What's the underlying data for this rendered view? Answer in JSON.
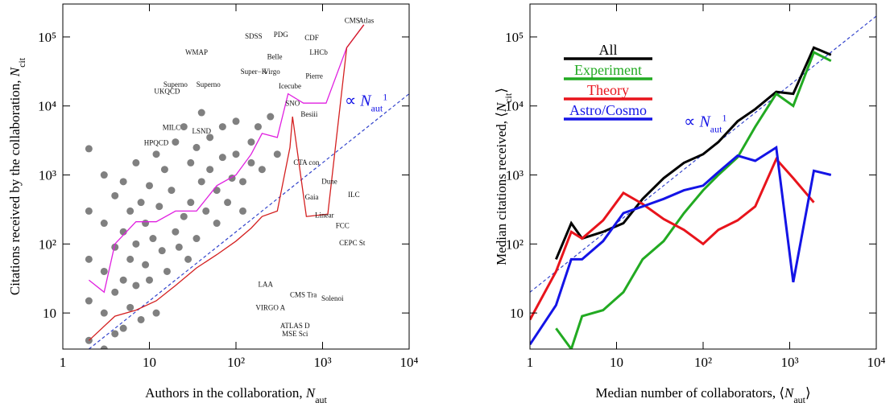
{
  "chart_data": [
    {
      "type": "scatter",
      "x_label": [
        {
          "t": "Authors in the collaboration, "
        },
        {
          "t": "N",
          "style": "italic"
        },
        {
          "t": "aut",
          "style": "sub"
        }
      ],
      "y_label": [
        {
          "t": "Citations received by the collaboration, "
        },
        {
          "t": "N",
          "style": "italic"
        },
        {
          "t": "cit",
          "style": "sub"
        }
      ],
      "xlim": [
        1,
        10000
      ],
      "ylim": [
        3,
        300000
      ],
      "log_x": true,
      "log_y": true,
      "xticks": [
        1,
        10,
        {
          "value": 100,
          "label": "10²"
        },
        {
          "value": 1000,
          "label": "10³"
        },
        {
          "value": 10000,
          "label": "10⁴"
        }
      ],
      "yticks": [
        10,
        {
          "value": 100,
          "label": "10²"
        },
        {
          "value": 1000,
          "label": "10³"
        },
        {
          "value": 10000,
          "label": "10⁴"
        },
        {
          "value": 100000,
          "label": "10⁵"
        }
      ],
      "color": "#808080",
      "x": [
        2,
        2,
        2,
        2,
        2,
        3,
        3,
        3,
        3,
        3,
        4,
        4,
        4,
        4,
        5,
        5,
        5,
        5,
        6,
        6,
        6,
        7,
        7,
        7,
        8,
        8,
        9,
        9,
        10,
        10,
        11,
        12,
        12,
        13,
        14,
        15,
        16,
        18,
        20,
        20,
        22,
        25,
        25,
        28,
        30,
        30,
        35,
        35,
        40,
        40,
        45,
        50,
        50,
        60,
        60,
        70,
        70,
        80,
        90,
        100,
        100,
        120,
        120,
        150,
        150,
        180,
        200,
        250,
        300
      ],
      "y": [
        2400,
        300,
        60,
        15,
        4,
        1000,
        200,
        40,
        10,
        3,
        500,
        90,
        20,
        5,
        800,
        150,
        30,
        6,
        300,
        60,
        12,
        1500,
        100,
        25,
        400,
        8,
        200,
        50,
        700,
        30,
        120,
        2000,
        10,
        350,
        80,
        1200,
        40,
        600,
        3000,
        150,
        90,
        5000,
        250,
        60,
        1500,
        400,
        2500,
        120,
        800,
        8000,
        300,
        1200,
        3500,
        200,
        600,
        5000,
        1800,
        400,
        900,
        6000,
        2000,
        300,
        800,
        3000,
        1500,
        5000,
        1200,
        7000,
        2000
      ],
      "lines": [
        {
          "color": "#e020e0",
          "x": [
            2,
            3,
            4,
            7,
            12,
            20,
            35,
            60,
            100,
            150,
            200,
            300,
            400,
            600,
            1100,
            1900,
            3000
          ],
          "values": [
            30,
            20,
            100,
            210,
            210,
            300,
            300,
            700,
            1000,
            2000,
            4000,
            3500,
            15000,
            11000,
            11000,
            70000,
            150000
          ]
        },
        {
          "color": "#d42020",
          "x": [
            2,
            4,
            7,
            12,
            20,
            35,
            60,
            100,
            150,
            200,
            300,
            420,
            450,
            650,
            1150,
            1900,
            3000
          ],
          "values": [
            4,
            9,
            11,
            15,
            25,
            45,
            70,
            110,
            170,
            250,
            300,
            2500,
            7000,
            250,
            270,
            70000,
            150000
          ]
        }
      ],
      "reference_line": {
        "color": "#3344cc",
        "x": [
          2,
          10000
        ],
        "y": [
          3,
          15000
        ]
      },
      "annotation": [
        {
          "t": "∝ "
        },
        {
          "t": "N",
          "style": "italic"
        },
        {
          "t": "aut",
          "style": "sub"
        },
        {
          "t": "1",
          "style": "sup"
        }
      ],
      "annotation_x": 1800,
      "annotation_y": 10000,
      "annotation_color": "#1414e6",
      "labels": [
        {
          "text": "UKQCD",
          "x": 16,
          "y": 15000
        },
        {
          "text": "WMAP",
          "x": 35,
          "y": 55000
        },
        {
          "text": "Superno",
          "x": 20,
          "y": 19000
        },
        {
          "text": "Superno",
          "x": 48,
          "y": 19000
        },
        {
          "text": "SDSS",
          "x": 160,
          "y": 95000
        },
        {
          "text": "PDG",
          "x": 330,
          "y": 100000
        },
        {
          "text": "CDF",
          "x": 750,
          "y": 90000
        },
        {
          "text": "Belle",
          "x": 280,
          "y": 48000
        },
        {
          "text": "MILC",
          "x": 18,
          "y": 4500
        },
        {
          "text": "HPQCD",
          "x": 12,
          "y": 2700
        },
        {
          "text": "LSND",
          "x": 40,
          "y": 4000
        },
        {
          "text": "Icecube",
          "x": 420,
          "y": 18000
        },
        {
          "text": "SNO",
          "x": 450,
          "y": 10000
        },
        {
          "text": "Super−K",
          "x": 160,
          "y": 29000
        },
        {
          "text": "Virgo",
          "x": 260,
          "y": 29000
        },
        {
          "text": "LHCb",
          "x": 900,
          "y": 55000
        },
        {
          "text": "Pierre",
          "x": 800,
          "y": 25000
        },
        {
          "text": "Besiii",
          "x": 700,
          "y": 7000
        },
        {
          "text": "CTA con",
          "x": 650,
          "y": 1400
        },
        {
          "text": "Dune",
          "x": 1200,
          "y": 750
        },
        {
          "text": "Gaia",
          "x": 750,
          "y": 440
        },
        {
          "text": "ILC",
          "x": 2300,
          "y": 480
        },
        {
          "text": "FCC",
          "x": 1700,
          "y": 170
        },
        {
          "text": "Linear",
          "x": 1050,
          "y": 240
        },
        {
          "text": "CEPC St",
          "x": 2200,
          "y": 95
        },
        {
          "text": "LAA",
          "x": 220,
          "y": 24
        },
        {
          "text": "VIRGO A",
          "x": 250,
          "y": 11
        },
        {
          "text": "CMS Tra",
          "x": 600,
          "y": 17
        },
        {
          "text": "Solenoi",
          "x": 1300,
          "y": 15
        },
        {
          "text": "ATLAS D",
          "x": 480,
          "y": 6
        },
        {
          "text": "MSE Sci",
          "x": 480,
          "y": 4.6
        },
        {
          "text": "CMS",
          "x": 2200,
          "y": 160000
        },
        {
          "text": "Atlas",
          "x": 3200,
          "y": 160000
        }
      ]
    },
    {
      "type": "line",
      "x_label": [
        {
          "t": "Median number of collaborators, ⟨"
        },
        {
          "t": "N",
          "style": "italic"
        },
        {
          "t": "aut",
          "style": "sub"
        },
        {
          "t": "⟩"
        }
      ],
      "y_label": [
        {
          "t": "Median citations received, ⟨"
        },
        {
          "t": "N",
          "style": "italic"
        },
        {
          "t": "cit",
          "style": "sub"
        },
        {
          "t": "⟩"
        }
      ],
      "xlim": [
        1,
        10000
      ],
      "ylim": [
        3,
        300000
      ],
      "log_x": true,
      "log_y": true,
      "xticks": [
        1,
        10,
        {
          "value": 100,
          "label": "10²"
        },
        {
          "value": 1000,
          "label": "10³"
        },
        {
          "value": 10000,
          "label": "10⁴"
        }
      ],
      "yticks": [
        10,
        {
          "value": 100,
          "label": "10²"
        },
        {
          "value": 1000,
          "label": "10³"
        },
        {
          "value": 10000,
          "label": "10⁴"
        },
        {
          "value": 100000,
          "label": "10⁵"
        }
      ],
      "x": [
        1,
        2,
        3,
        4,
        7,
        12,
        20,
        35,
        60,
        100,
        150,
        250,
        400,
        700,
        1100,
        1900,
        3000
      ],
      "series": [
        {
          "name": "All",
          "color": "#000000",
          "values": [
            null,
            60,
            200,
            120,
            150,
            200,
            450,
            900,
            1500,
            2000,
            3000,
            6000,
            9000,
            16000,
            15000,
            70000,
            55000
          ]
        },
        {
          "name": "Experiment",
          "color": "#22aa22",
          "values": [
            null,
            6,
            3,
            9,
            11,
            20,
            60,
            110,
            280,
            600,
            1000,
            1800,
            5000,
            15000,
            10000,
            60000,
            45000
          ]
        },
        {
          "name": "Theory",
          "color": "#e8141c",
          "values": [
            8,
            40,
            150,
            120,
            220,
            550,
            380,
            230,
            160,
            100,
            160,
            220,
            350,
            1700,
            900,
            400,
            null
          ]
        },
        {
          "name": "Astro/Cosmo",
          "color": "#1414e6",
          "values": [
            3.5,
            13,
            60,
            60,
            110,
            280,
            350,
            450,
            600,
            700,
            1100,
            1900,
            1600,
            2500,
            28,
            1150,
            1000
          ]
        }
      ],
      "legend": "upper left",
      "reference_line": {
        "color": "#3344cc",
        "x": [
          1,
          10000
        ],
        "y": [
          20,
          200000
        ]
      },
      "annotation": [
        {
          "t": "∝ "
        },
        {
          "t": "N",
          "style": "italic"
        },
        {
          "t": "aut",
          "style": "sub"
        },
        {
          "t": "1",
          "style": "sup"
        }
      ],
      "annotation_x": 60,
      "annotation_y": 5000,
      "annotation_color": "#1414e6"
    }
  ]
}
